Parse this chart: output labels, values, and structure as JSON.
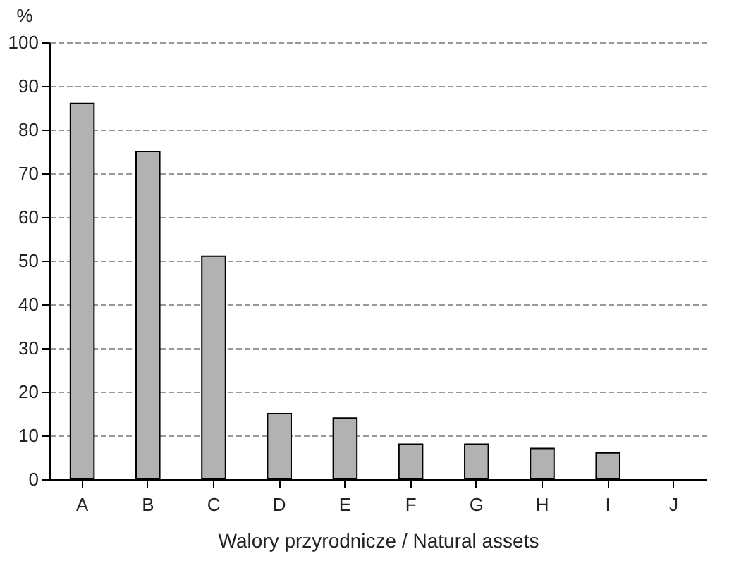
{
  "chart_data": {
    "type": "bar",
    "xlabel": "Walory przyrodnicze / Natural assets",
    "ylabel": "%",
    "categories": [
      "A",
      "B",
      "C",
      "D",
      "E",
      "F",
      "G",
      "H",
      "I",
      "J"
    ],
    "values": [
      86,
      75,
      51,
      15,
      14,
      8,
      8,
      7,
      6,
      null
    ],
    "color": "#b2b2b2",
    "ylim": [
      0,
      100
    ],
    "yticks": [
      0,
      10,
      20,
      30,
      40,
      50,
      60,
      70,
      80,
      90,
      100
    ],
    "grid": "y"
  }
}
